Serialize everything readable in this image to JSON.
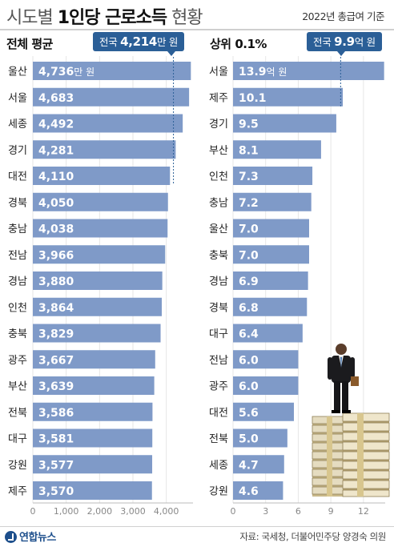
{
  "title": {
    "light": "시도별 ",
    "bold": "1인당 근로소득",
    "rest": " 현황"
  },
  "basis": "2022년 총급여 기준",
  "left_panel": {
    "title": "전체 평균",
    "avg_prefix": "전국 ",
    "avg_value": "4,214",
    "avg_unit": "만 원"
  },
  "right_panel": {
    "title": "상위 0.1%",
    "avg_prefix": "전국 ",
    "avg_value": "9.9",
    "avg_unit": "억 원"
  },
  "source": "자료: 국세청, 더불어민주당 양경숙 의원",
  "logo": "연합뉴스",
  "colors": {
    "bar": "#7f9ac8",
    "label": "#ffffff",
    "box": "#2b5f97",
    "grid": "#e6e6e6"
  },
  "chart_data": [
    {
      "type": "bar",
      "orientation": "horizontal",
      "title": "전체 평균",
      "unit": "만 원",
      "reference": {
        "label": "전국",
        "value": 4214
      },
      "categories": [
        "울산",
        "서울",
        "세종",
        "경기",
        "대전",
        "경북",
        "충남",
        "전남",
        "경남",
        "인천",
        "충북",
        "광주",
        "부산",
        "전북",
        "대구",
        "강원",
        "제주"
      ],
      "values": [
        4736,
        4683,
        4492,
        4281,
        4110,
        4050,
        4038,
        3966,
        3880,
        3864,
        3829,
        3667,
        3639,
        3586,
        3581,
        3577,
        3570
      ],
      "labels": [
        "4,736",
        "4,683",
        "4,492",
        "4,281",
        "4,110",
        "4,050",
        "4,038",
        "3,966",
        "3,880",
        "3,864",
        "3,829",
        "3,667",
        "3,639",
        "3,586",
        "3,581",
        "3,577",
        "3,570"
      ],
      "first_label_unit": "만 원",
      "xlim": [
        0,
        4800
      ],
      "xticks": [
        0,
        1000,
        2000,
        3000,
        4000
      ],
      "xtick_labels": [
        "0",
        "1,000",
        "2,000",
        "3,000",
        "4,000"
      ]
    },
    {
      "type": "bar",
      "orientation": "horizontal",
      "title": "상위 0.1%",
      "unit": "억 원",
      "reference": {
        "label": "전국",
        "value": 9.9
      },
      "categories": [
        "서울",
        "제주",
        "경기",
        "부산",
        "인천",
        "충남",
        "울산",
        "충북",
        "경남",
        "경북",
        "대구",
        "전남",
        "광주",
        "대전",
        "전북",
        "세종",
        "강원"
      ],
      "values": [
        13.9,
        10.1,
        9.5,
        8.1,
        7.3,
        7.2,
        7.0,
        7.0,
        6.9,
        6.8,
        6.4,
        6.0,
        6.0,
        5.6,
        5.0,
        4.7,
        4.6
      ],
      "labels": [
        "13.9",
        "10.1",
        "9.5",
        "8.1",
        "7.3",
        "7.2",
        "7.0",
        "7.0",
        "6.9",
        "6.8",
        "6.4",
        "6.0",
        "6.0",
        "5.6",
        "5.0",
        "4.7",
        "4.6"
      ],
      "first_label_unit": "억 원",
      "xlim": [
        0,
        14
      ],
      "xticks": [
        0,
        3,
        6,
        9,
        12
      ],
      "xtick_labels": [
        "0",
        "3",
        "6",
        "9",
        "12"
      ]
    }
  ]
}
